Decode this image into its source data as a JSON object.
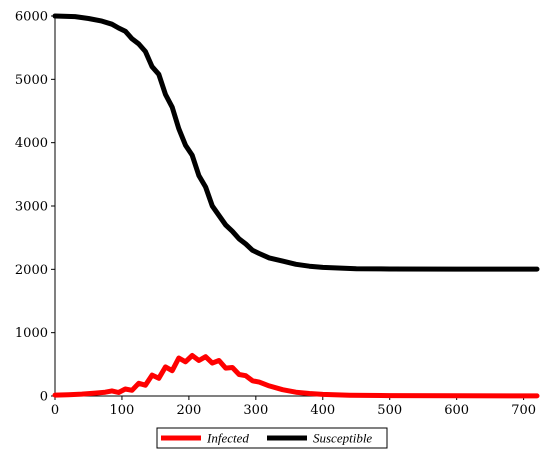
{
  "chart_data": {
    "type": "line",
    "title": "",
    "xlabel": "",
    "ylabel": "",
    "xlim": [
      0,
      720
    ],
    "ylim": [
      0,
      6000
    ],
    "grid": false,
    "legend_position": "bottom-center",
    "x_ticks": [
      0,
      100,
      200,
      300,
      400,
      500,
      600,
      700
    ],
    "y_ticks": [
      0,
      1000,
      2000,
      3000,
      4000,
      5000,
      6000
    ],
    "x_tick_labels": [
      "0",
      "100",
      "200",
      "300",
      "400",
      "500",
      "600",
      "700"
    ],
    "y_tick_labels": [
      "0",
      "1000",
      "2000",
      "3000",
      "4000",
      "5000",
      "6000"
    ],
    "series": [
      {
        "name": "Infected",
        "color": "#ff0000",
        "points": [
          [
            0,
            15
          ],
          [
            20,
            20
          ],
          [
            40,
            30
          ],
          [
            60,
            45
          ],
          [
            75,
            60
          ],
          [
            85,
            80
          ],
          [
            95,
            55
          ],
          [
            105,
            110
          ],
          [
            115,
            90
          ],
          [
            125,
            200
          ],
          [
            135,
            170
          ],
          [
            145,
            330
          ],
          [
            155,
            280
          ],
          [
            165,
            460
          ],
          [
            175,
            400
          ],
          [
            185,
            600
          ],
          [
            195,
            540
          ],
          [
            205,
            640
          ],
          [
            215,
            560
          ],
          [
            225,
            620
          ],
          [
            235,
            520
          ],
          [
            245,
            560
          ],
          [
            255,
            440
          ],
          [
            265,
            450
          ],
          [
            275,
            340
          ],
          [
            285,
            320
          ],
          [
            295,
            240
          ],
          [
            305,
            220
          ],
          [
            320,
            160
          ],
          [
            340,
            100
          ],
          [
            360,
            60
          ],
          [
            380,
            40
          ],
          [
            400,
            25
          ],
          [
            440,
            12
          ],
          [
            500,
            6
          ],
          [
            600,
            3
          ],
          [
            720,
            2
          ]
        ]
      },
      {
        "name": "Susceptible",
        "color": "#000000",
        "points": [
          [
            0,
            6000
          ],
          [
            30,
            5990
          ],
          [
            50,
            5960
          ],
          [
            70,
            5920
          ],
          [
            85,
            5870
          ],
          [
            95,
            5810
          ],
          [
            105,
            5760
          ],
          [
            115,
            5640
          ],
          [
            125,
            5560
          ],
          [
            135,
            5440
          ],
          [
            145,
            5200
          ],
          [
            155,
            5080
          ],
          [
            165,
            4760
          ],
          [
            175,
            4560
          ],
          [
            185,
            4220
          ],
          [
            195,
            3960
          ],
          [
            205,
            3800
          ],
          [
            215,
            3480
          ],
          [
            225,
            3300
          ],
          [
            235,
            3000
          ],
          [
            245,
            2850
          ],
          [
            255,
            2700
          ],
          [
            265,
            2600
          ],
          [
            275,
            2480
          ],
          [
            285,
            2400
          ],
          [
            295,
            2300
          ],
          [
            305,
            2250
          ],
          [
            320,
            2180
          ],
          [
            340,
            2130
          ],
          [
            360,
            2080
          ],
          [
            380,
            2050
          ],
          [
            400,
            2030
          ],
          [
            450,
            2010
          ],
          [
            500,
            2005
          ],
          [
            600,
            2003
          ],
          [
            720,
            2003
          ]
        ]
      }
    ]
  }
}
